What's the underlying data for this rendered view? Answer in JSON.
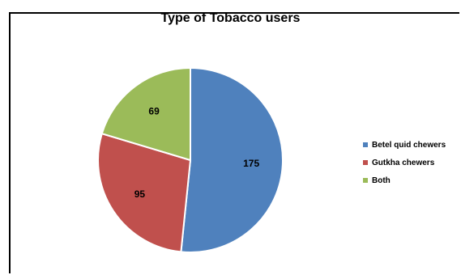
{
  "chart_data": {
    "type": "pie",
    "title": "Type of Tobacco users",
    "categories": [
      "Betel quid chewers",
      "Gutkha chewers",
      "Both"
    ],
    "values": [
      175,
      95,
      69
    ],
    "colors": [
      "#4f81bd",
      "#c0504d",
      "#9bbb59"
    ],
    "legend": "right",
    "data_labels": "inside"
  }
}
